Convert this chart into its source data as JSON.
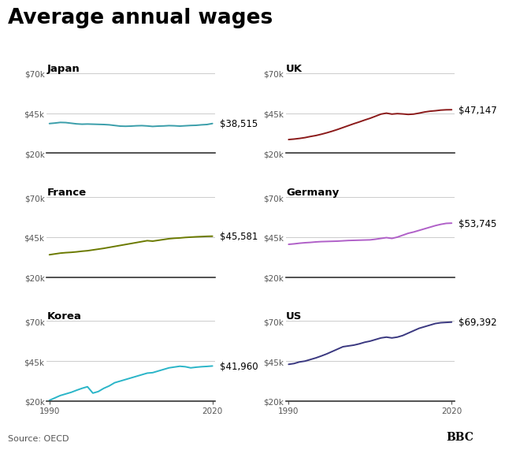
{
  "title": "Average annual wages",
  "source": "Source: OECD",
  "bbc_text": "BBC",
  "background_color": "#ffffff",
  "panels": [
    {
      "country": "Japan",
      "color": "#3a9eaa",
      "end_label": "$38,515",
      "years": [
        1990,
        1991,
        1992,
        1993,
        1994,
        1995,
        1996,
        1997,
        1998,
        1999,
        2000,
        2001,
        2002,
        2003,
        2004,
        2005,
        2006,
        2007,
        2008,
        2009,
        2010,
        2011,
        2012,
        2013,
        2014,
        2015,
        2016,
        2017,
        2018,
        2019,
        2020
      ],
      "values": [
        38500,
        38800,
        39200,
        39100,
        38700,
        38300,
        38100,
        38200,
        38100,
        38000,
        37900,
        37700,
        37300,
        36900,
        36800,
        36900,
        37100,
        37200,
        37000,
        36700,
        36900,
        37000,
        37200,
        37100,
        36900,
        37100,
        37300,
        37400,
        37700,
        37900,
        38515
      ],
      "ylim": [
        20000,
        70000
      ],
      "yticks": [
        20000,
        45000,
        70000
      ]
    },
    {
      "country": "UK",
      "color": "#8b1a1a",
      "end_label": "$47,147",
      "years": [
        1990,
        1991,
        1992,
        1993,
        1994,
        1995,
        1996,
        1997,
        1998,
        1999,
        2000,
        2001,
        2002,
        2003,
        2004,
        2005,
        2006,
        2007,
        2008,
        2009,
        2010,
        2011,
        2012,
        2013,
        2014,
        2015,
        2016,
        2017,
        2018,
        2019,
        2020
      ],
      "values": [
        28500,
        28800,
        29200,
        29700,
        30400,
        31000,
        31800,
        32700,
        33700,
        34800,
        36000,
        37200,
        38400,
        39500,
        40700,
        41800,
        43100,
        44400,
        45000,
        44400,
        44700,
        44500,
        44200,
        44400,
        45000,
        45700,
        46200,
        46500,
        46900,
        47100,
        47147
      ],
      "ylim": [
        20000,
        70000
      ],
      "yticks": [
        20000,
        45000,
        70000
      ]
    },
    {
      "country": "France",
      "color": "#6b7a00",
      "end_label": "$45,581",
      "years": [
        1990,
        1991,
        1992,
        1993,
        1994,
        1995,
        1996,
        1997,
        1998,
        1999,
        2000,
        2001,
        2002,
        2003,
        2004,
        2005,
        2006,
        2007,
        2008,
        2009,
        2010,
        2011,
        2012,
        2013,
        2014,
        2015,
        2016,
        2017,
        2018,
        2019,
        2020
      ],
      "values": [
        34000,
        34500,
        35000,
        35300,
        35500,
        35800,
        36200,
        36500,
        37000,
        37500,
        38000,
        38600,
        39200,
        39800,
        40400,
        41000,
        41600,
        42200,
        42800,
        42500,
        43000,
        43500,
        44000,
        44300,
        44500,
        44800,
        45000,
        45200,
        45350,
        45500,
        45581
      ],
      "ylim": [
        20000,
        70000
      ],
      "yticks": [
        20000,
        45000,
        70000
      ]
    },
    {
      "country": "Germany",
      "color": "#b060c8",
      "end_label": "$53,745",
      "years": [
        1990,
        1991,
        1992,
        1993,
        1994,
        1995,
        1996,
        1997,
        1998,
        1999,
        2000,
        2001,
        2002,
        2003,
        2004,
        2005,
        2006,
        2007,
        2008,
        2009,
        2010,
        2011,
        2012,
        2013,
        2014,
        2015,
        2016,
        2017,
        2018,
        2019,
        2020
      ],
      "values": [
        40500,
        40800,
        41200,
        41500,
        41700,
        42000,
        42200,
        42300,
        42400,
        42500,
        42700,
        42900,
        43000,
        43100,
        43200,
        43300,
        43700,
        44200,
        44700,
        44200,
        45000,
        46200,
        47400,
        48200,
        49200,
        50200,
        51200,
        52200,
        53000,
        53600,
        53745
      ],
      "ylim": [
        20000,
        70000
      ],
      "yticks": [
        20000,
        45000,
        70000
      ]
    },
    {
      "country": "Korea",
      "color": "#2ab5c8",
      "end_label": "$41,960",
      "years": [
        1990,
        1991,
        1992,
        1993,
        1994,
        1995,
        1996,
        1997,
        1998,
        1999,
        2000,
        2001,
        2002,
        2003,
        2004,
        2005,
        2006,
        2007,
        2008,
        2009,
        2010,
        2011,
        2012,
        2013,
        2014,
        2015,
        2016,
        2017,
        2018,
        2019,
        2020
      ],
      "values": [
        20500,
        22000,
        23500,
        24500,
        25500,
        26800,
        28000,
        29000,
        25000,
        26000,
        28000,
        29500,
        31500,
        32500,
        33500,
        34500,
        35500,
        36500,
        37500,
        37800,
        38800,
        39800,
        40800,
        41300,
        41800,
        41500,
        40800,
        41200,
        41500,
        41700,
        41960
      ],
      "ylim": [
        20000,
        70000
      ],
      "yticks": [
        20000,
        45000,
        70000
      ]
    },
    {
      "country": "US",
      "color": "#3a3880",
      "end_label": "$69,392",
      "years": [
        1990,
        1991,
        1992,
        1993,
        1994,
        1995,
        1996,
        1997,
        1998,
        1999,
        2000,
        2001,
        2002,
        2003,
        2004,
        2005,
        2006,
        2007,
        2008,
        2009,
        2010,
        2011,
        2012,
        2013,
        2014,
        2015,
        2016,
        2017,
        2018,
        2019,
        2020
      ],
      "values": [
        43000,
        43500,
        44500,
        45000,
        46000,
        47000,
        48200,
        49500,
        51000,
        52500,
        54000,
        54500,
        55000,
        55800,
        56800,
        57500,
        58500,
        59500,
        60000,
        59500,
        60000,
        61000,
        62500,
        64000,
        65500,
        66500,
        67500,
        68500,
        69000,
        69200,
        69392
      ],
      "ylim": [
        20000,
        70000
      ],
      "yticks": [
        20000,
        45000,
        70000
      ]
    }
  ],
  "title_fontsize": 19,
  "label_fontsize": 8.5,
  "country_fontsize": 9.5,
  "tick_fontsize": 7.5,
  "source_fontsize": 8,
  "grid_color": "#cccccc",
  "tick_color": "#555555",
  "spine_color": "#333333"
}
